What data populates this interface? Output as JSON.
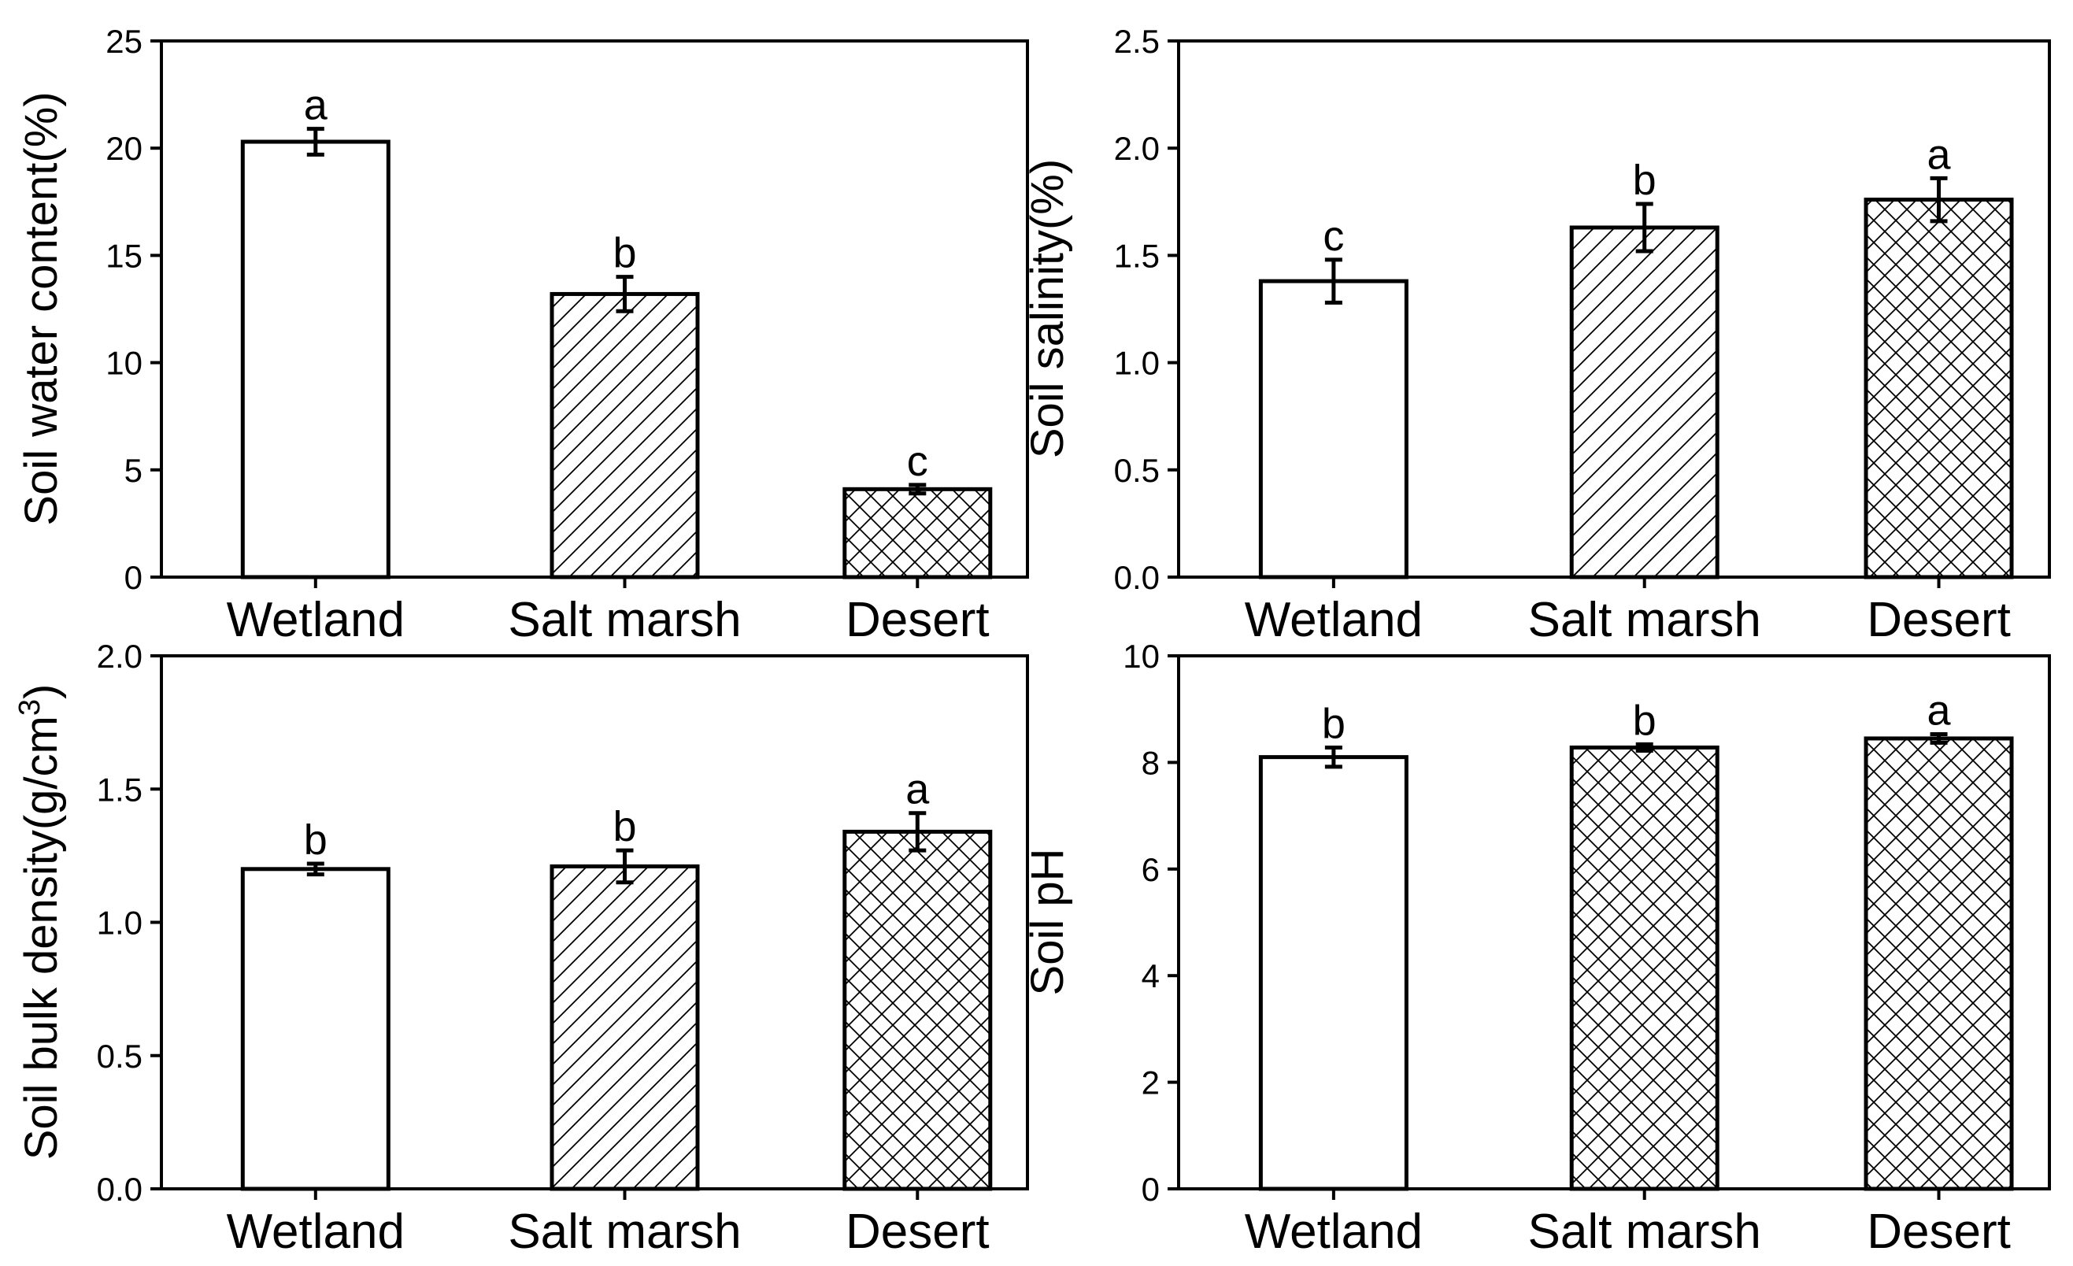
{
  "chart_data": [
    {
      "type": "bar",
      "categories": [
        "Wetland",
        "Salt marsh",
        "Desert"
      ],
      "values": [
        20.3,
        13.2,
        4.1
      ],
      "errors": [
        0.6,
        0.8,
        0.2
      ],
      "significance": [
        "a",
        "b",
        "c"
      ],
      "patterns": [
        "none",
        "diagonal",
        "crosshatch"
      ],
      "ylabel": "Soil water content(%)",
      "ylim": [
        0,
        25
      ],
      "yticks": [
        "0",
        "5",
        "10",
        "15",
        "20",
        "25"
      ],
      "ytick_values": [
        0,
        5,
        10,
        15,
        20,
        25
      ]
    },
    {
      "type": "bar",
      "categories": [
        "Wetland",
        "Salt marsh",
        "Desert"
      ],
      "values": [
        1.38,
        1.63,
        1.76
      ],
      "errors": [
        0.1,
        0.11,
        0.1
      ],
      "significance": [
        "c",
        "b",
        "a"
      ],
      "patterns": [
        "none",
        "diagonal",
        "crosshatch"
      ],
      "ylabel": "Soil salinity(%)",
      "ylim": [
        0,
        2.5
      ],
      "yticks": [
        "0.0",
        "0.5",
        "1.0",
        "1.5",
        "2.0",
        "2.5"
      ],
      "ytick_values": [
        0,
        0.5,
        1.0,
        1.5,
        2.0,
        2.5
      ]
    },
    {
      "type": "bar",
      "categories": [
        "Wetland",
        "Salt marsh",
        "Desert"
      ],
      "values": [
        1.2,
        1.21,
        1.34
      ],
      "errors": [
        0.02,
        0.06,
        0.07
      ],
      "significance": [
        "b",
        "b",
        "a"
      ],
      "patterns": [
        "none",
        "diagonal",
        "crosshatch"
      ],
      "ylabel": "Soil bulk density(g/cm",
      "ylabel_sup": "3",
      "ylabel_end": ")",
      "ylim": [
        0,
        2.0
      ],
      "yticks": [
        "0.0",
        "0.5",
        "1.0",
        "1.5",
        "2.0"
      ],
      "ytick_values": [
        0,
        0.5,
        1.0,
        1.5,
        2.0
      ]
    },
    {
      "type": "bar",
      "categories": [
        "Wetland",
        "Salt marsh",
        "Desert"
      ],
      "values": [
        8.1,
        8.28,
        8.45
      ],
      "errors": [
        0.18,
        0.06,
        0.08
      ],
      "significance": [
        "b",
        "b",
        "a"
      ],
      "patterns": [
        "none",
        "crosshatch",
        "crosshatch"
      ],
      "ylabel": "Soil pH",
      "ylim": [
        0,
        10
      ],
      "yticks": [
        "0",
        "2",
        "4",
        "6",
        "8",
        "10"
      ],
      "ytick_values": [
        0,
        2,
        4,
        6,
        8,
        10
      ]
    }
  ]
}
